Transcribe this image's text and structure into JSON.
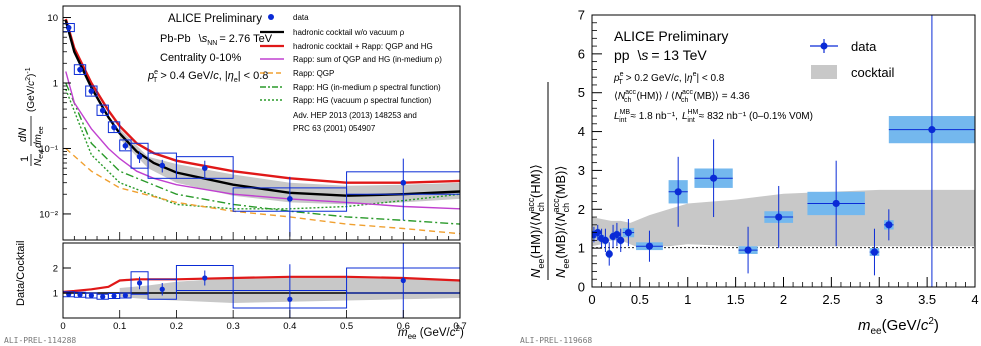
{
  "chart_data": [
    {
      "type": "line",
      "panel": "left-top",
      "header": "ALICE Preliminary",
      "system": "Pb-Pb",
      "energy_value": "= 2.76 TeV",
      "centrality": "Centrality 0-10%",
      "cut_pt_value": "> 0.4 GeV/",
      "cut_eta": "| < 0.8",
      "ylabel_tail": "(GeV/",
      "xlim": [
        0,
        0.7
      ],
      "ylim": [
        0.004,
        15
      ],
      "yscale": "log",
      "legend": {
        "data": "data",
        "cocktail": "hadronic cocktail w/o vacuum ρ",
        "rapp_total": "hadronic cocktail + Rapp: QGP and HG",
        "rapp_sum": "Rapp: sum of QGP and HG (in-medium ρ)",
        "rapp_qgp": "Rapp: QGP",
        "rapp_hg_med": "Rapp: HG (in-medium ρ spectral function)",
        "rapp_hg_vac": "Rapp: HG (vacuum ρ spectral function)",
        "ref1": "Adv. HEP 2013 (2013) 148253 and",
        "ref2": "PRC 63 (2001) 054907"
      },
      "y_ticks": [
        {
          "value": 10,
          "label": "10"
        },
        {
          "value": 1,
          "label": "1"
        },
        {
          "value": 0.1,
          "label": "10⁻¹"
        },
        {
          "value": 0.01,
          "label": "10⁻²"
        }
      ],
      "series": [
        {
          "name": "data",
          "color": "#0a2bd6",
          "x": [
            0.01,
            0.03,
            0.05,
            0.07,
            0.09,
            0.11,
            0.135,
            0.175,
            0.25,
            0.4,
            0.6
          ],
          "y": [
            7.0,
            1.6,
            0.75,
            0.38,
            0.21,
            0.11,
            0.075,
            0.055,
            0.05,
            0.017,
            0.03
          ],
          "xerr": [
            0.01,
            0.01,
            0.01,
            0.01,
            0.01,
            0.01,
            0.015,
            0.025,
            0.05,
            0.1,
            0.1
          ],
          "yerr_lo": [
            0.8,
            0.2,
            0.1,
            0.05,
            0.03,
            0.015,
            0.015,
            0.012,
            0.015,
            0.0125,
            0.022
          ],
          "yerr_hi": [
            0.8,
            0.2,
            0.1,
            0.05,
            0.03,
            0.015,
            0.015,
            0.012,
            0.015,
            0.02,
            0.04
          ],
          "sys_lo": [
            0.9,
            0.25,
            0.12,
            0.06,
            0.035,
            0.018,
            0.025,
            0.02,
            0.015,
            0.006,
            0.01
          ],
          "sys_hi": [
            1.1,
            0.3,
            0.15,
            0.08,
            0.045,
            0.025,
            0.045,
            0.03,
            0.025,
            0.008,
            0.014
          ]
        },
        {
          "name": "hadronic cocktail w/o vacuum ρ",
          "color": "#000000",
          "x": [
            0.005,
            0.02,
            0.05,
            0.08,
            0.1,
            0.13,
            0.16,
            0.2,
            0.3,
            0.4,
            0.5,
            0.6,
            0.7
          ],
          "y": [
            9.0,
            3.0,
            0.85,
            0.3,
            0.17,
            0.09,
            0.06,
            0.043,
            0.028,
            0.021,
            0.019,
            0.02,
            0.022
          ]
        },
        {
          "name": "hadronic cocktail + Rapp: QGP and HG",
          "color": "#e01818",
          "x": [
            0.005,
            0.02,
            0.05,
            0.08,
            0.1,
            0.13,
            0.16,
            0.2,
            0.3,
            0.4,
            0.5,
            0.6,
            0.7
          ],
          "y": [
            9.5,
            3.4,
            1.0,
            0.38,
            0.22,
            0.12,
            0.085,
            0.065,
            0.045,
            0.035,
            0.03,
            0.03,
            0.032
          ]
        },
        {
          "name": "Rapp: sum of QGP and HG (in-medium ρ)",
          "color": "#c040d0",
          "x": [
            0.005,
            0.02,
            0.05,
            0.08,
            0.1,
            0.13,
            0.16,
            0.2,
            0.3,
            0.4,
            0.5,
            0.6,
            0.7
          ],
          "y": [
            1.5,
            0.5,
            0.2,
            0.1,
            0.07,
            0.045,
            0.035,
            0.028,
            0.02,
            0.017,
            0.015,
            0.013,
            0.012
          ]
        },
        {
          "name": "Rapp: QGP",
          "color": "#f0a030",
          "dash": "6 4",
          "x": [
            0.005,
            0.05,
            0.1,
            0.2,
            0.3,
            0.4,
            0.5,
            0.6,
            0.7
          ],
          "y": [
            0.1,
            0.045,
            0.025,
            0.015,
            0.011,
            0.009,
            0.007,
            0.006,
            0.005
          ]
        },
        {
          "name": "Rapp: HG (in-medium ρ spectral function)",
          "color": "#2a9a2a",
          "dash": "8 3 2 3",
          "x": [
            0.005,
            0.05,
            0.1,
            0.2,
            0.3,
            0.4,
            0.5,
            0.6,
            0.7
          ],
          "y": [
            1.0,
            0.12,
            0.045,
            0.02,
            0.014,
            0.011,
            0.009,
            0.008,
            0.007
          ]
        },
        {
          "name": "Rapp: HG (vacuum ρ spectral function)",
          "color": "#2a9a2a",
          "dash": "2 2",
          "x": [
            0.005,
            0.05,
            0.1,
            0.2,
            0.3,
            0.4,
            0.5,
            0.6,
            0.7
          ],
          "y": [
            0.8,
            0.08,
            0.03,
            0.014,
            0.012,
            0.012,
            0.013,
            0.016,
            0.02
          ]
        }
      ],
      "cocktail_band": {
        "color": "#c8c8c8",
        "x": [
          0.1,
          0.15,
          0.2,
          0.3,
          0.4,
          0.5,
          0.6,
          0.7
        ],
        "lo": [
          0.14,
          0.05,
          0.03,
          0.019,
          0.015,
          0.014,
          0.015,
          0.017
        ],
        "hi": [
          0.2,
          0.075,
          0.058,
          0.04,
          0.03,
          0.027,
          0.028,
          0.03
        ]
      }
    },
    {
      "type": "line",
      "panel": "left-bottom",
      "ylabel": "Data/Cocktail",
      "xlim": [
        0,
        0.7
      ],
      "ylim": [
        0,
        3
      ],
      "x_ticks": [
        "0",
        "0.1",
        "0.2",
        "0.3",
        "0.4",
        "0.5",
        "0.6",
        "0.7"
      ],
      "y_ticks": [
        "1",
        "2"
      ],
      "series": [
        {
          "name": "data",
          "color": "#0a2bd6",
          "x": [
            0.01,
            0.03,
            0.05,
            0.07,
            0.09,
            0.11,
            0.135,
            0.175,
            0.25,
            0.4,
            0.6
          ],
          "y": [
            0.95,
            0.93,
            0.9,
            0.85,
            0.88,
            0.9,
            1.4,
            1.15,
            1.6,
            0.75,
            1.5
          ],
          "xerr": [
            0.01,
            0.01,
            0.01,
            0.01,
            0.01,
            0.01,
            0.015,
            0.025,
            0.05,
            0.1,
            0.1
          ],
          "yerr": [
            0.1,
            0.1,
            0.1,
            0.1,
            0.1,
            0.1,
            0.25,
            0.25,
            0.3,
            1.4,
            1.5
          ],
          "sys": [
            0.1,
            0.1,
            0.1,
            0.1,
            0.1,
            0.1,
            0.45,
            0.4,
            0.5,
            0.35,
            0.5
          ]
        },
        {
          "name": "hadronic cocktail + Rapp: QGP and HG",
          "color": "#e01818",
          "x": [
            0.0,
            0.02,
            0.05,
            0.08,
            0.1,
            0.13,
            0.16,
            0.2,
            0.3,
            0.4,
            0.5,
            0.6,
            0.7
          ],
          "y": [
            1.05,
            1.08,
            1.15,
            1.25,
            1.5,
            1.55,
            1.55,
            1.55,
            1.6,
            1.65,
            1.65,
            1.6,
            1.5
          ]
        }
      ],
      "ratio_band": {
        "color": "#c8c8c8",
        "x": [
          0.1,
          0.15,
          0.2,
          0.3,
          0.4,
          0.5,
          0.6,
          0.7
        ],
        "lo": [
          0.85,
          0.75,
          0.7,
          0.6,
          0.65,
          0.7,
          0.75,
          0.8
        ],
        "hi": [
          1.2,
          1.3,
          1.45,
          1.6,
          1.65,
          1.65,
          1.6,
          1.55
        ]
      }
    },
    {
      "type": "scatter",
      "panel": "right",
      "header": "ALICE Preliminary",
      "system": "pp",
      "energy_value": "= 13 TeV",
      "cut_pt_value": "> 0.2 GeV/",
      "cut_eta": "| < 0.8",
      "ratio_line_value": "= 4.36",
      "lumi_hm": "≈ 1.8 nb⁻¹,",
      "lumi_mb": "≈ 832 nb⁻¹ (0–0.1% V0M)",
      "ylabel_left": "N",
      "legend": {
        "data": "data",
        "cocktail": "cocktail"
      },
      "xlabel_unit": "(GeV/",
      "xlim": [
        0,
        4
      ],
      "ylim": [
        0,
        7
      ],
      "x_ticks": [
        "0",
        "0.5",
        "1",
        "1.5",
        "2",
        "2.5",
        "3",
        "3.5",
        "4"
      ],
      "y_ticks": [
        "0",
        "1",
        "2",
        "3",
        "4",
        "5",
        "6",
        "7"
      ],
      "series": [
        {
          "name": "data",
          "color": "#0a2bd6",
          "x": [
            0.02,
            0.06,
            0.1,
            0.14,
            0.18,
            0.22,
            0.26,
            0.3,
            0.38,
            0.6,
            0.9,
            1.27,
            1.63,
            1.95,
            2.55,
            2.95,
            3.1,
            3.55
          ],
          "y": [
            1.35,
            1.4,
            1.25,
            1.2,
            0.85,
            1.3,
            1.35,
            1.2,
            1.4,
            1.05,
            2.45,
            2.8,
            0.95,
            1.8,
            2.15,
            0.9,
            1.6,
            4.05
          ],
          "xerr": [
            0.02,
            0.02,
            0.02,
            0.02,
            0.02,
            0.02,
            0.02,
            0.02,
            0.06,
            0.14,
            0.1,
            0.2,
            0.1,
            0.15,
            0.3,
            0.05,
            0.05,
            0.45
          ],
          "yerr": [
            0.2,
            0.2,
            0.25,
            0.3,
            0.3,
            0.3,
            0.3,
            0.3,
            0.35,
            0.4,
            0.9,
            1.0,
            0.6,
            0.8,
            1.1,
            0.6,
            0.4,
            4.05
          ],
          "sys": [
            0.1,
            0.1,
            0.1,
            0.1,
            0.1,
            0.1,
            0.1,
            0.1,
            0.12,
            0.1,
            0.3,
            0.25,
            0.1,
            0.15,
            0.3,
            0.1,
            0.12,
            0.35
          ]
        }
      ],
      "cocktail_band": {
        "color": "#c8c8c8",
        "x": [
          0.0,
          0.1,
          0.2,
          0.3,
          0.4,
          0.5,
          0.6,
          0.8,
          1.0,
          1.5,
          2.0,
          2.5,
          3.0,
          3.5,
          4.0
        ],
        "lo": [
          1.05,
          1.1,
          1.2,
          1.2,
          1.1,
          1.0,
          1.05,
          1.05,
          1.1,
          1.05,
          1.05,
          1.05,
          1.05,
          1.05,
          1.05
        ],
        "hi": [
          1.8,
          1.75,
          1.7,
          1.7,
          1.65,
          1.75,
          1.85,
          2.0,
          2.15,
          2.25,
          2.4,
          2.45,
          2.5,
          2.5,
          2.5
        ]
      }
    }
  ],
  "footer": {
    "left_id": "ALI-PREL-114288",
    "right_id": "ALI-PREL-119668"
  }
}
